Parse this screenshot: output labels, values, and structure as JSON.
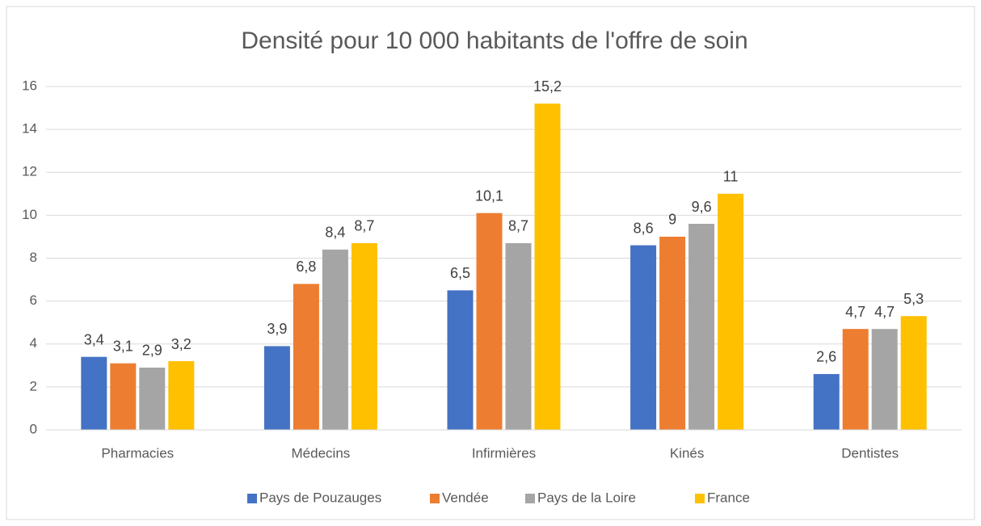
{
  "chart_data": {
    "type": "bar",
    "title": "Densité pour 10 000 habitants de l'offre de soin",
    "categories": [
      "Pharmacies",
      "Médecins",
      "Infirmières",
      "Kinés",
      "Dentistes"
    ],
    "series": [
      {
        "name": "Pays de Pouzauges",
        "color": "#4472c4",
        "values": [
          3.4,
          3.9,
          6.5,
          8.6,
          2.6
        ],
        "value_labels": [
          "3,4",
          "3,9",
          "6,5",
          "8,6",
          "2,6"
        ]
      },
      {
        "name": "Vendée",
        "color": "#ed7d31",
        "values": [
          3.1,
          6.8,
          10.1,
          9,
          4.7
        ],
        "value_labels": [
          "3,1",
          "6,8",
          "10,1",
          "9",
          "4,7"
        ]
      },
      {
        "name": "Pays de la Loire",
        "color": "#a5a5a5",
        "values": [
          2.9,
          8.4,
          8.7,
          9.6,
          4.7
        ],
        "value_labels": [
          "2,9",
          "8,4",
          "8,7",
          "9,6",
          "4,7"
        ]
      },
      {
        "name": "France",
        "color": "#ffc000",
        "values": [
          3.2,
          8.7,
          15.2,
          11,
          5.3
        ],
        "value_labels": [
          "3,2",
          "8,7",
          "15,2",
          "11",
          "5,3"
        ]
      }
    ],
    "ylim": [
      0,
      16
    ],
    "yticks": [
      0,
      2,
      4,
      6,
      8,
      10,
      12,
      14,
      16
    ],
    "grid": true,
    "legend": "bottom"
  }
}
